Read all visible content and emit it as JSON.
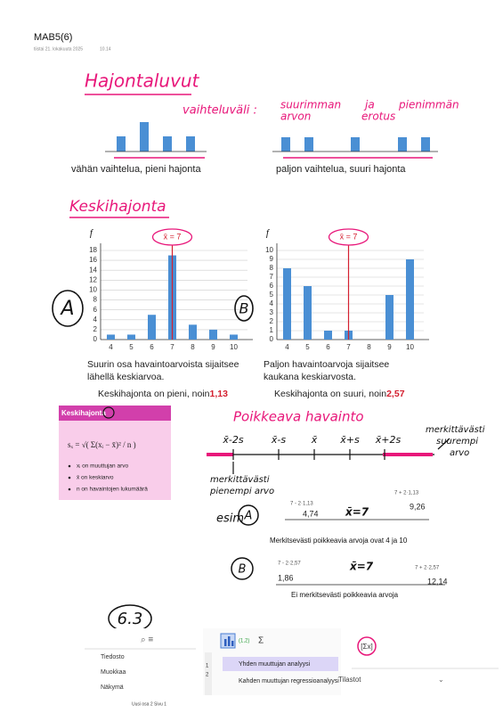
{
  "header": {
    "title": "MAB5(6)",
    "date": "tiistai 21. lokakuuta 2025",
    "time": "10.14"
  },
  "notes": {
    "heading": "Hajontaluvut",
    "range_label": "vaihteluväli :",
    "range_def": [
      "suurimman",
      "arvon",
      "ja",
      "erotus",
      "pienimmän"
    ]
  },
  "spread_examples": [
    "vähän vaihtelua, pieni hajonta",
    "paljon vaihtelua, suuri hajonta"
  ],
  "std_heading": "Keskihajonta",
  "charts": [
    {
      "type": "bar",
      "name": "A",
      "y_label": "f",
      "mean_label": "x̄ = 7",
      "mean": 7,
      "categories": [
        "4",
        "5",
        "6",
        "7",
        "8",
        "9",
        "10"
      ],
      "values": [
        1,
        1,
        5,
        17,
        3,
        2,
        1
      ],
      "color": "#4a8fd4",
      "ylim": [
        0,
        18
      ],
      "yticks": [
        0,
        2,
        4,
        6,
        8,
        10,
        12,
        14,
        16,
        18
      ],
      "caption": [
        "Suurin osa havaintoarvoista sijaitsee",
        "lähellä keskiarvoa."
      ],
      "summary_text": "Keskihajonta on pieni, noin ",
      "summary_value": "1,13"
    },
    {
      "type": "bar",
      "name": "B",
      "y_label": "f",
      "mean_label": "x̄ = 7",
      "mean": 7,
      "categories": [
        "4",
        "5",
        "6",
        "7",
        "8",
        "9",
        "10"
      ],
      "values": [
        8,
        6,
        1,
        1,
        0,
        5,
        9
      ],
      "color": "#4a8fd4",
      "ylim": [
        0,
        10
      ],
      "yticks": [
        0,
        1,
        2,
        3,
        4,
        5,
        6,
        7,
        8,
        9,
        10
      ],
      "caption": [
        "Paljon havaintoarvoja sijaitsee",
        "kaukana keskiarvosta."
      ],
      "summary_text": "Keskihajonta on suuri, noin ",
      "summary_value": "2,57"
    }
  ],
  "formula_box": {
    "title": "Keskihajonta",
    "formula": "sₓ = √( Σ(xᵢ − x̄)² / n )",
    "bullets": [
      "xᵢ on muuttujan arvo",
      "x̄ on keskiarvo",
      "n on havaintojen lukumäärä"
    ]
  },
  "outlier": {
    "heading": "Poikkeava havainto",
    "line_labels": [
      "x̄-2s",
      "x̄-s",
      "x̄",
      "x̄+s",
      "x̄+2s"
    ],
    "upper_note": [
      "merkittävästi",
      "suurempi",
      "arvo"
    ],
    "lower_note": [
      "merkittävästi",
      "pienempi arvo"
    ]
  },
  "example_a": {
    "lead": "esim",
    "label": "A",
    "low_calc": "7 - 2·1,13",
    "low": "4,74",
    "mean": "x̄=7",
    "high_calc": "7 + 2·1,13",
    "high": "9,26",
    "conclusion": "Merkitsevästi poikkeavia arvoja ovat 4  ja  10"
  },
  "example_b": {
    "label": "B",
    "low_calc": "7 - 2·2,57",
    "low": "1,86",
    "mean": "x̄=7",
    "high_calc": "7 + 2·2,57",
    "high": "12,14",
    "conclusion": "Ei merkitsevästi poikkeavia arvoja"
  },
  "section_label": "6.3",
  "app": {
    "menu": [
      "Tiedosto",
      "Muokkaa",
      "Näkymä"
    ],
    "toolbar_item": "(1,2)",
    "sigma": "Σ",
    "options": [
      "Yhden muuttujan analyysi",
      "Kahden muuttujan regressioanalyysi"
    ],
    "panel": "Tilastot"
  },
  "footer": "Uusi osa 2   Sivu 1"
}
